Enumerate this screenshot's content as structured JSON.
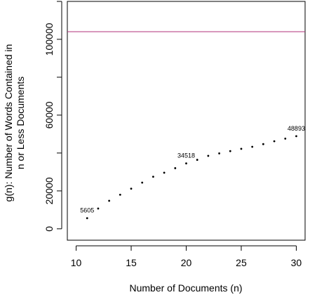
{
  "chart_data": {
    "type": "scatter",
    "title": "",
    "xlabel": "Number of Documents (n)",
    "ylabel_lines": [
      "g(n): Number of Words Contained in",
      "n or Less Documents"
    ],
    "xlim": [
      9.2,
      30.8
    ],
    "ylim": [
      -6000,
      120000
    ],
    "xticks": [
      10,
      15,
      20,
      25,
      30
    ],
    "yticks": [
      0,
      20000,
      60000,
      100000
    ],
    "grid": false,
    "points": [
      {
        "x": 11,
        "y": 5605
      },
      {
        "x": 12,
        "y": 10700
      },
      {
        "x": 13,
        "y": 14800
      },
      {
        "x": 14,
        "y": 18000
      },
      {
        "x": 15,
        "y": 21200
      },
      {
        "x": 16,
        "y": 24400
      },
      {
        "x": 17,
        "y": 27500
      },
      {
        "x": 18,
        "y": 29600
      },
      {
        "x": 19,
        "y": 32000
      },
      {
        "x": 20,
        "y": 34518
      },
      {
        "x": 21,
        "y": 36400
      },
      {
        "x": 22,
        "y": 38500
      },
      {
        "x": 23,
        "y": 39800
      },
      {
        "x": 24,
        "y": 41000
      },
      {
        "x": 25,
        "y": 42200
      },
      {
        "x": 26,
        "y": 43300
      },
      {
        "x": 27,
        "y": 44700
      },
      {
        "x": 28,
        "y": 46200
      },
      {
        "x": 29,
        "y": 47600
      },
      {
        "x": 30,
        "y": 48893
      }
    ],
    "point_labels": [
      {
        "x": 11,
        "y": 5605,
        "text": "5605"
      },
      {
        "x": 20,
        "y": 34518,
        "text": "34518"
      },
      {
        "x": 30,
        "y": 48893,
        "text": "48893"
      }
    ],
    "reference_line": {
      "y": 104000,
      "color": "#b0307a"
    },
    "point_color": "#000000"
  }
}
